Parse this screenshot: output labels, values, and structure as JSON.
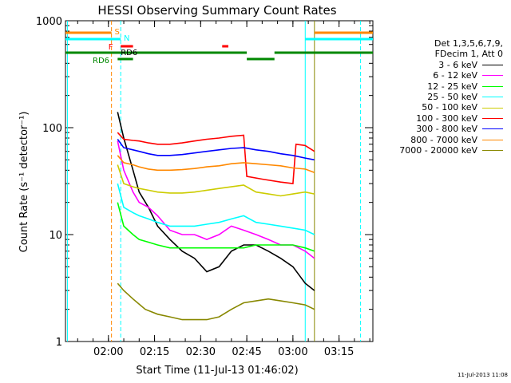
{
  "chart_data": {
    "type": "line",
    "title": "HESSI Observing Summary Count Rates",
    "xlabel": "Start Time (11-Jul-13 01:46:02)",
    "ylabel": "Count Rate (s⁻¹ detector⁻¹)",
    "yscale": "log",
    "ylim": [
      1,
      1000
    ],
    "xlim": [
      "01:46:02",
      "03:26:00"
    ],
    "y_ticks": [
      "1",
      "10",
      "100",
      "1000"
    ],
    "x_ticks": [
      {
        "t": "02:00",
        "label": "02:00"
      },
      {
        "t": "02:15",
        "label": "02:15"
      },
      {
        "t": "02:30",
        "label": "02:30"
      },
      {
        "t": "02:45",
        "label": "02:45"
      },
      {
        "t": "03:00",
        "label": "03:00"
      },
      {
        "t": "03:15",
        "label": "03:15"
      }
    ],
    "legend_header": [
      "Det 1,3,5,6,7,9,",
      "FDecim 1, Att 0"
    ],
    "legend_position": "right",
    "flags": {
      "S": "S",
      "N": "N",
      "F": "F",
      "RD6_top": "RD6",
      "RD6_left": "RD6"
    },
    "series": [
      {
        "name": "3 - 6 keV",
        "color": "#000000",
        "values": [
          [
            "02:03",
            140
          ],
          [
            "02:05",
            80
          ],
          [
            "02:08",
            40
          ],
          [
            "02:10",
            25
          ],
          [
            "02:13",
            18
          ],
          [
            "02:16",
            12
          ],
          [
            "02:20",
            9
          ],
          [
            "02:24",
            7
          ],
          [
            "02:28",
            6
          ],
          [
            "02:32",
            4.5
          ],
          [
            "02:36",
            5
          ],
          [
            "02:40",
            7
          ],
          [
            "02:44",
            8
          ],
          [
            "02:48",
            8
          ],
          [
            "02:52",
            7
          ],
          [
            "02:56",
            6
          ],
          [
            "03:00",
            5
          ],
          [
            "03:04",
            3.5
          ],
          [
            "03:07",
            3.0
          ]
        ]
      },
      {
        "name": "6 - 12 keV",
        "color": "#ff00ff",
        "values": [
          [
            "02:03",
            75
          ],
          [
            "02:05",
            40
          ],
          [
            "02:08",
            25
          ],
          [
            "02:10",
            20
          ],
          [
            "02:13",
            18
          ],
          [
            "02:16",
            15
          ],
          [
            "02:20",
            11
          ],
          [
            "02:24",
            10
          ],
          [
            "02:28",
            10
          ],
          [
            "02:32",
            9
          ],
          [
            "02:36",
            10
          ],
          [
            "02:40",
            12
          ],
          [
            "02:44",
            11
          ],
          [
            "02:48",
            10
          ],
          [
            "02:52",
            9
          ],
          [
            "02:56",
            8
          ],
          [
            "03:00",
            8
          ],
          [
            "03:04",
            7
          ],
          [
            "03:07",
            6
          ]
        ]
      },
      {
        "name": "12 - 25 keV",
        "color": "#00ff00",
        "values": [
          [
            "02:03",
            20
          ],
          [
            "02:05",
            12
          ],
          [
            "02:08",
            10
          ],
          [
            "02:10",
            9
          ],
          [
            "02:13",
            8.5
          ],
          [
            "02:16",
            8
          ],
          [
            "02:20",
            7.5
          ],
          [
            "02:24",
            7.5
          ],
          [
            "02:28",
            7.5
          ],
          [
            "02:32",
            7.5
          ],
          [
            "02:36",
            7.5
          ],
          [
            "02:40",
            7.5
          ],
          [
            "02:44",
            7.5
          ],
          [
            "02:48",
            8
          ],
          [
            "02:52",
            8
          ],
          [
            "02:56",
            8
          ],
          [
            "03:00",
            8
          ],
          [
            "03:04",
            7.5
          ],
          [
            "03:07",
            7
          ]
        ]
      },
      {
        "name": "25 - 50 keV",
        "color": "#00ffff",
        "values": [
          [
            "02:03",
            30
          ],
          [
            "02:05",
            18
          ],
          [
            "02:08",
            16
          ],
          [
            "02:10",
            15
          ],
          [
            "02:13",
            14
          ],
          [
            "02:16",
            13
          ],
          [
            "02:20",
            12
          ],
          [
            "02:24",
            12
          ],
          [
            "02:28",
            12
          ],
          [
            "02:32",
            12.5
          ],
          [
            "02:36",
            13
          ],
          [
            "02:40",
            14
          ],
          [
            "02:44",
            15
          ],
          [
            "02:48",
            13
          ],
          [
            "02:52",
            12.5
          ],
          [
            "02:56",
            12
          ],
          [
            "03:00",
            11.5
          ],
          [
            "03:04",
            11
          ],
          [
            "03:07",
            10
          ]
        ]
      },
      {
        "name": "50 - 100 keV",
        "color": "#cccc00",
        "values": [
          [
            "02:03",
            45
          ],
          [
            "02:05",
            30
          ],
          [
            "02:08",
            28
          ],
          [
            "02:10",
            27
          ],
          [
            "02:13",
            26
          ],
          [
            "02:16",
            25
          ],
          [
            "02:20",
            24.5
          ],
          [
            "02:24",
            24.5
          ],
          [
            "02:28",
            25
          ],
          [
            "02:32",
            26
          ],
          [
            "02:36",
            27
          ],
          [
            "02:40",
            28
          ],
          [
            "02:44",
            29
          ],
          [
            "02:48",
            25
          ],
          [
            "02:52",
            24
          ],
          [
            "02:56",
            23
          ],
          [
            "03:00",
            24
          ],
          [
            "03:04",
            25
          ],
          [
            "03:07",
            24
          ]
        ]
      },
      {
        "name": "100 - 300 keV",
        "color": "#ff0000",
        "values": [
          [
            "02:03",
            90
          ],
          [
            "02:05",
            78
          ],
          [
            "02:08",
            76
          ],
          [
            "02:10",
            75
          ],
          [
            "02:13",
            72
          ],
          [
            "02:16",
            70
          ],
          [
            "02:20",
            70
          ],
          [
            "02:24",
            72
          ],
          [
            "02:28",
            75
          ],
          [
            "02:32",
            78
          ],
          [
            "02:36",
            80
          ],
          [
            "02:40",
            83
          ],
          [
            "02:44",
            85
          ],
          [
            "02:45",
            35
          ],
          [
            "02:50",
            33
          ],
          [
            "02:56",
            31
          ],
          [
            "03:00",
            30
          ],
          [
            "03:01",
            70
          ],
          [
            "03:04",
            68
          ],
          [
            "03:07",
            60
          ]
        ]
      },
      {
        "name": "300 - 800 keV",
        "color": "#0000ff",
        "values": [
          [
            "02:03",
            78
          ],
          [
            "02:05",
            65
          ],
          [
            "02:08",
            62
          ],
          [
            "02:10",
            60
          ],
          [
            "02:13",
            57
          ],
          [
            "02:16",
            55
          ],
          [
            "02:20",
            55
          ],
          [
            "02:24",
            56
          ],
          [
            "02:28",
            58
          ],
          [
            "02:32",
            60
          ],
          [
            "02:36",
            62
          ],
          [
            "02:40",
            64
          ],
          [
            "02:44",
            65
          ],
          [
            "02:48",
            62
          ],
          [
            "02:52",
            60
          ],
          [
            "02:56",
            57
          ],
          [
            "03:00",
            55
          ],
          [
            "03:04",
            52
          ],
          [
            "03:07",
            50
          ]
        ]
      },
      {
        "name": "800 - 7000 keV",
        "color": "#ff8800",
        "values": [
          [
            "02:03",
            55
          ],
          [
            "02:05",
            47
          ],
          [
            "02:08",
            45
          ],
          [
            "02:10",
            43
          ],
          [
            "02:13",
            41
          ],
          [
            "02:16",
            40
          ],
          [
            "02:20",
            40
          ],
          [
            "02:24",
            40.5
          ],
          [
            "02:28",
            41.5
          ],
          [
            "02:32",
            43
          ],
          [
            "02:36",
            44
          ],
          [
            "02:40",
            46
          ],
          [
            "02:44",
            47
          ],
          [
            "02:48",
            46
          ],
          [
            "02:52",
            45
          ],
          [
            "02:56",
            44
          ],
          [
            "03:00",
            42
          ],
          [
            "03:04",
            41
          ],
          [
            "03:07",
            38
          ]
        ]
      },
      {
        "name": "7000 - 20000 keV",
        "color": "#888800",
        "values": [
          [
            "02:03",
            3.5
          ],
          [
            "02:05",
            3.0
          ],
          [
            "02:08",
            2.5
          ],
          [
            "02:12",
            2.0
          ],
          [
            "02:16",
            1.8
          ],
          [
            "02:20",
            1.7
          ],
          [
            "02:24",
            1.6
          ],
          [
            "02:28",
            1.6
          ],
          [
            "02:32",
            1.6
          ],
          [
            "02:36",
            1.7
          ],
          [
            "02:40",
            2.0
          ],
          [
            "02:44",
            2.3
          ],
          [
            "02:48",
            2.4
          ],
          [
            "02:52",
            2.5
          ],
          [
            "02:56",
            2.4
          ],
          [
            "03:00",
            2.3
          ],
          [
            "03:04",
            2.2
          ],
          [
            "03:07",
            2.0
          ]
        ]
      }
    ]
  },
  "stamp": "11-Jul-2013 11:08",
  "colors": {
    "attenuator_bar": "#ff8800",
    "saa_bar": "#00ffff",
    "rd6_bar": "#008800",
    "flare_marker": "#ff0000",
    "boundary_line": "#00ffff",
    "orange_dash": "#ff8800",
    "olive_line": "#888800"
  }
}
